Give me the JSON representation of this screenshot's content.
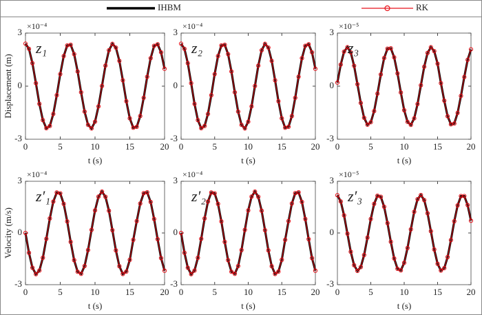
{
  "chart_data": [
    {
      "type": "line",
      "label": "z₁",
      "exponent": "×10⁻⁴",
      "xlabel": "t (s)",
      "ylabel": "Displacement (m)",
      "xlim": [
        0,
        20
      ],
      "ylim": [
        -3,
        3
      ],
      "xticks": [
        0,
        5,
        10,
        15,
        20
      ],
      "yticks": [
        -3,
        0,
        3
      ],
      "x": [
        0,
        0.5,
        1,
        1.5,
        2,
        2.5,
        3,
        3.5,
        4,
        4.5,
        5,
        5.5,
        6,
        6.5,
        7,
        7.5,
        8,
        8.5,
        9,
        9.5,
        10,
        10.5,
        11,
        11.5,
        12,
        12.5,
        13,
        13.5,
        14,
        14.5,
        15,
        15.5,
        16,
        16.5,
        17,
        17.5,
        18,
        18.5,
        19,
        19.5,
        20
      ],
      "series": [
        {
          "name": "IHBM",
          "color": "#000000",
          "values": [
            2.4,
            2.11,
            1.3,
            0.17,
            -1,
            -1.92,
            -2.38,
            -2.25,
            -1.57,
            -0.51,
            0.68,
            1.7,
            2.3,
            2.34,
            1.81,
            0.83,
            -0.35,
            -1.44,
            -2.19,
            -2.39,
            -2.01,
            -1.14,
            0.01,
            1.16,
            2.03,
            2.39,
            2.18,
            1.43,
            0.33,
            -0.85,
            -1.82,
            -2.35,
            -2.3,
            -1.69,
            -0.66,
            0.53,
            1.58,
            2.28,
            2.37,
            1.91,
            0.98
          ]
        },
        {
          "name": "RK",
          "color": "#e8121a",
          "marker": "circle",
          "values": [
            2.4,
            2.11,
            1.3,
            0.17,
            -1,
            -1.92,
            -2.38,
            -2.25,
            -1.57,
            -0.51,
            0.68,
            1.7,
            2.3,
            2.34,
            1.81,
            0.83,
            -0.35,
            -1.44,
            -2.19,
            -2.39,
            -2.01,
            -1.14,
            0.01,
            1.16,
            2.03,
            2.39,
            2.18,
            1.43,
            0.33,
            -0.85,
            -1.82,
            -2.35,
            -2.3,
            -1.69,
            -0.66,
            0.53,
            1.58,
            2.28,
            2.37,
            1.91,
            0.98
          ]
        }
      ]
    },
    {
      "type": "line",
      "label": "z₂",
      "exponent": "×10⁻⁴",
      "xlabel": "t (s)",
      "xlim": [
        0,
        20
      ],
      "ylim": [
        -3,
        3
      ],
      "xticks": [
        0,
        5,
        10,
        15,
        20
      ],
      "yticks": [
        -3,
        0,
        3
      ],
      "x": [
        0,
        0.5,
        1,
        1.5,
        2,
        2.5,
        3,
        3.5,
        4,
        4.5,
        5,
        5.5,
        6,
        6.5,
        7,
        7.5,
        8,
        8.5,
        9,
        9.5,
        10,
        10.5,
        11,
        11.5,
        12,
        12.5,
        13,
        13.5,
        14,
        14.5,
        15,
        15.5,
        16,
        16.5,
        17,
        17.5,
        18,
        18.5,
        19,
        19.5,
        20
      ],
      "series": [
        {
          "values": [
            2.4,
            2.11,
            1.3,
            0.17,
            -1,
            -1.92,
            -2.38,
            -2.25,
            -1.57,
            -0.51,
            0.68,
            1.7,
            2.3,
            2.34,
            1.81,
            0.83,
            -0.35,
            -1.44,
            -2.19,
            -2.39,
            -2.01,
            -1.14,
            0.01,
            1.16,
            2.03,
            2.39,
            2.18,
            1.43,
            0.33,
            -0.85,
            -1.82,
            -2.35,
            -2.3,
            -1.69,
            -0.66,
            0.53,
            1.58,
            2.28,
            2.37,
            1.91,
            0.98
          ]
        },
        {
          "values": [
            2.4,
            2.11,
            1.3,
            0.17,
            -1,
            -1.92,
            -2.38,
            -2.25,
            -1.57,
            -0.51,
            0.68,
            1.7,
            2.3,
            2.34,
            1.81,
            0.83,
            -0.35,
            -1.44,
            -2.19,
            -2.39,
            -2.01,
            -1.14,
            0.01,
            1.16,
            2.03,
            2.39,
            2.18,
            1.43,
            0.33,
            -0.85,
            -1.82,
            -2.35,
            -2.3,
            -1.69,
            -0.66,
            0.53,
            1.58,
            2.28,
            2.37,
            1.91,
            0.98
          ]
        }
      ]
    },
    {
      "type": "line",
      "label": "z₃",
      "exponent": "×10⁻⁵",
      "xlabel": "t (s)",
      "xlim": [
        0,
        20
      ],
      "ylim": [
        -3,
        3
      ],
      "xticks": [
        0,
        5,
        10,
        15,
        20
      ],
      "yticks": [
        -3,
        0,
        3
      ],
      "x": [
        0,
        0.5,
        1,
        1.5,
        2,
        2.5,
        3,
        3.5,
        4,
        4.5,
        5,
        5.5,
        6,
        6.5,
        7,
        7.5,
        8,
        8.5,
        9,
        9.5,
        10,
        10.5,
        11,
        11.5,
        12,
        12.5,
        13,
        13.5,
        14,
        14.5,
        15,
        15.5,
        16,
        16.5,
        17,
        17.5,
        18,
        18.5,
        19,
        19.5,
        20
      ],
      "series": [
        {
          "values": [
            0.2,
            1.22,
            1.95,
            2.2,
            1.91,
            1.15,
            0.11,
            -0.95,
            -1.79,
            -2.18,
            -2.04,
            -1.41,
            -0.42,
            0.66,
            1.59,
            2.12,
            2.14,
            1.63,
            0.72,
            -0.36,
            -1.36,
            -2.02,
            -2.19,
            -1.82,
            -1.01,
            0.05,
            1.1,
            1.88,
            2.2,
            1.98,
            1.27,
            0.17,
            -0.82,
            -1.7,
            -2.16,
            -2.11,
            -1.51,
            -0.55,
            0.52,
            1.49,
            2.08
          ]
        },
        {
          "values": [
            0.2,
            1.22,
            1.95,
            2.2,
            1.91,
            1.15,
            0.11,
            -0.95,
            -1.79,
            -2.18,
            -2.04,
            -1.41,
            -0.42,
            0.66,
            1.59,
            2.12,
            2.14,
            1.63,
            0.72,
            -0.36,
            -1.36,
            -2.02,
            -2.19,
            -1.82,
            -1.01,
            0.05,
            1.1,
            1.88,
            2.2,
            1.98,
            1.27,
            0.17,
            -0.82,
            -1.7,
            -2.16,
            -2.11,
            -1.51,
            -0.55,
            0.52,
            1.49,
            2.08
          ]
        }
      ]
    },
    {
      "type": "line",
      "label": "z′₁",
      "exponent": "×10⁻⁴",
      "xlabel": "t (s)",
      "ylabel": "Velocity (m/s)",
      "xlim": [
        0,
        20
      ],
      "ylim": [
        -3,
        3
      ],
      "xticks": [
        0,
        5,
        10,
        15,
        20
      ],
      "yticks": [
        -3,
        0,
        3
      ],
      "x": [
        0,
        0.5,
        1,
        1.5,
        2,
        2.5,
        3,
        3.5,
        4,
        4.5,
        5,
        5.5,
        6,
        6.5,
        7,
        7.5,
        8,
        8.5,
        9,
        9.5,
        10,
        10.5,
        11,
        11.5,
        12,
        12.5,
        13,
        13.5,
        14,
        14.5,
        15,
        15.5,
        16,
        16.5,
        17,
        17.5,
        18,
        18.5,
        19,
        19.5,
        20
      ],
      "series": [
        {
          "values": [
            0,
            -1.15,
            -2.02,
            -2.39,
            -2.18,
            -1.44,
            -0.34,
            0.84,
            1.82,
            2.35,
            2.3,
            1.69,
            0.67,
            -0.52,
            -1.58,
            -2.25,
            -2.37,
            -1.92,
            -0.99,
            0.18,
            1.31,
            2.11,
            2.4,
            2.1,
            1.29,
            0.16,
            -1.01,
            -1.93,
            -2.38,
            -2.24,
            -1.56,
            -0.4,
            0.69,
            1.71,
            2.31,
            2.36,
            1.8,
            0.81,
            -0.36,
            -1.46,
            -2.19
          ]
        },
        {
          "values": [
            0,
            -1.15,
            -2.02,
            -2.39,
            -2.18,
            -1.44,
            -0.34,
            0.84,
            1.82,
            2.35,
            2.3,
            1.69,
            0.67,
            -0.52,
            -1.58,
            -2.25,
            -2.37,
            -1.92,
            -0.99,
            0.18,
            1.31,
            2.11,
            2.4,
            2.1,
            1.29,
            0.16,
            -1.01,
            -1.93,
            -2.38,
            -2.24,
            -1.56,
            -0.4,
            0.69,
            1.71,
            2.31,
            2.36,
            1.8,
            0.81,
            -0.36,
            -1.46,
            -2.19
          ]
        }
      ]
    },
    {
      "type": "line",
      "label": "z′₂",
      "exponent": "×10⁻⁴",
      "xlabel": "t (s)",
      "xlim": [
        0,
        20
      ],
      "ylim": [
        -3,
        3
      ],
      "xticks": [
        0,
        5,
        10,
        15,
        20
      ],
      "yticks": [
        -3,
        0,
        3
      ],
      "x": [
        0,
        0.5,
        1,
        1.5,
        2,
        2.5,
        3,
        3.5,
        4,
        4.5,
        5,
        5.5,
        6,
        6.5,
        7,
        7.5,
        8,
        8.5,
        9,
        9.5,
        10,
        10.5,
        11,
        11.5,
        12,
        12.5,
        13,
        13.5,
        14,
        14.5,
        15,
        15.5,
        16,
        16.5,
        17,
        17.5,
        18,
        18.5,
        19,
        19.5,
        20
      ],
      "series": [
        {
          "values": [
            0,
            -1.15,
            -2.02,
            -2.39,
            -2.18,
            -1.44,
            -0.34,
            0.84,
            1.82,
            2.35,
            2.3,
            1.69,
            0.67,
            -0.52,
            -1.58,
            -2.25,
            -2.37,
            -1.92,
            -0.99,
            0.18,
            1.31,
            2.11,
            2.4,
            2.1,
            1.29,
            0.16,
            -1.01,
            -1.93,
            -2.38,
            -2.24,
            -1.56,
            -0.4,
            0.69,
            1.71,
            2.31,
            2.36,
            1.8,
            0.81,
            -0.36,
            -1.46,
            -2.19
          ]
        },
        {
          "values": [
            0,
            -1.15,
            -2.02,
            -2.39,
            -2.18,
            -1.44,
            -0.34,
            0.84,
            1.82,
            2.35,
            2.3,
            1.69,
            0.67,
            -0.52,
            -1.58,
            -2.25,
            -2.37,
            -1.92,
            -0.99,
            0.18,
            1.31,
            2.11,
            2.4,
            2.1,
            1.29,
            0.16,
            -1.01,
            -1.93,
            -2.38,
            -2.24,
            -1.56,
            -0.4,
            0.69,
            1.71,
            2.31,
            2.36,
            1.8,
            0.81,
            -0.36,
            -1.46,
            -2.19
          ]
        }
      ]
    },
    {
      "type": "line",
      "label": "z′₃",
      "exponent": "×10⁻⁵",
      "xlabel": "t (s)",
      "xlim": [
        0,
        20
      ],
      "ylim": [
        -3,
        3
      ],
      "xticks": [
        0,
        5,
        10,
        15,
        20
      ],
      "yticks": [
        -3,
        0,
        3
      ],
      "x": [
        0,
        0.5,
        1,
        1.5,
        2,
        2.5,
        3,
        3.5,
        4,
        4.5,
        5,
        5.5,
        6,
        6.5,
        7,
        7.5,
        8,
        8.5,
        9,
        9.5,
        10,
        10.5,
        11,
        11.5,
        12,
        12.5,
        13,
        13.5,
        14,
        14.5,
        15,
        15.5,
        16,
        16.5,
        17,
        17.5,
        18,
        18.5,
        19,
        19.5,
        20
      ],
      "series": [
        {
          "values": [
            2.19,
            1.83,
            1.02,
            -0.04,
            -1.09,
            -1.87,
            -2.2,
            -1.98,
            -1.28,
            -0.27,
            0.81,
            1.69,
            2.16,
            2.1,
            1.52,
            0.57,
            -0.51,
            -1.48,
            -2.08,
            -2.17,
            -1.73,
            -0.87,
            0.21,
            1.23,
            1.96,
            2.2,
            1.91,
            1.14,
            0.1,
            -0.96,
            -1.79,
            -2.18,
            -2.04,
            -1.4,
            -0.41,
            0.68,
            1.6,
            2.14,
            2.14,
            1.62,
            0.71
          ]
        },
        {
          "values": [
            2.19,
            1.83,
            1.02,
            -0.04,
            -1.09,
            -1.87,
            -2.2,
            -1.98,
            -1.28,
            -0.27,
            0.81,
            1.69,
            2.16,
            2.1,
            1.52,
            0.57,
            -0.51,
            -1.48,
            -2.08,
            -2.17,
            -1.73,
            -0.87,
            0.21,
            1.23,
            1.96,
            2.2,
            1.91,
            1.14,
            0.1,
            -0.96,
            -1.79,
            -2.18,
            -2.04,
            -1.4,
            -0.41,
            0.68,
            1.6,
            2.14,
            2.14,
            1.62,
            0.71
          ]
        }
      ]
    }
  ]
}
